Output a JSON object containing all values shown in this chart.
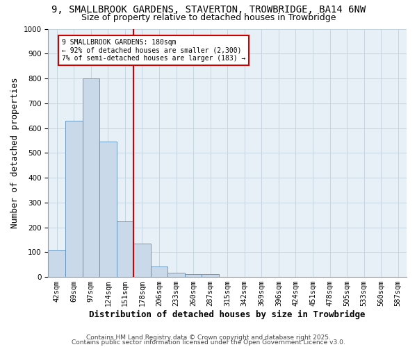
{
  "title_line1": "9, SMALLBROOK GARDENS, STAVERTON, TROWBRIDGE, BA14 6NW",
  "title_line2": "Size of property relative to detached houses in Trowbridge",
  "xlabel": "Distribution of detached houses by size in Trowbridge",
  "ylabel": "Number of detached properties",
  "bar_labels": [
    "42sqm",
    "69sqm",
    "97sqm",
    "124sqm",
    "151sqm",
    "178sqm",
    "206sqm",
    "233sqm",
    "260sqm",
    "287sqm",
    "315sqm",
    "342sqm",
    "369sqm",
    "396sqm",
    "424sqm",
    "451sqm",
    "478sqm",
    "505sqm",
    "533sqm",
    "560sqm",
    "587sqm"
  ],
  "bar_values": [
    110,
    630,
    800,
    545,
    225,
    135,
    42,
    18,
    10,
    10,
    0,
    0,
    0,
    0,
    0,
    0,
    0,
    0,
    0,
    0,
    0
  ],
  "bar_color": "#c9d9ea",
  "bar_edge_color": "#5b8db8",
  "vline_color": "#cc0000",
  "annotation_text": "9 SMALLBROOK GARDENS: 180sqm\n← 92% of detached houses are smaller (2,300)\n7% of semi-detached houses are larger (183) →",
  "annotation_box_color": "#ffffff",
  "annotation_box_edge": "#cc0000",
  "ylim": [
    0,
    1000
  ],
  "grid_color": "#c5d5e0",
  "bg_color": "#e8f0f7",
  "footer_line1": "Contains HM Land Registry data © Crown copyright and database right 2025.",
  "footer_line2": "Contains public sector information licensed under the Open Government Licence v3.0.",
  "title_fontsize": 10,
  "subtitle_fontsize": 9,
  "axis_label_fontsize": 9,
  "tick_fontsize": 7.5,
  "footer_fontsize": 6.5
}
